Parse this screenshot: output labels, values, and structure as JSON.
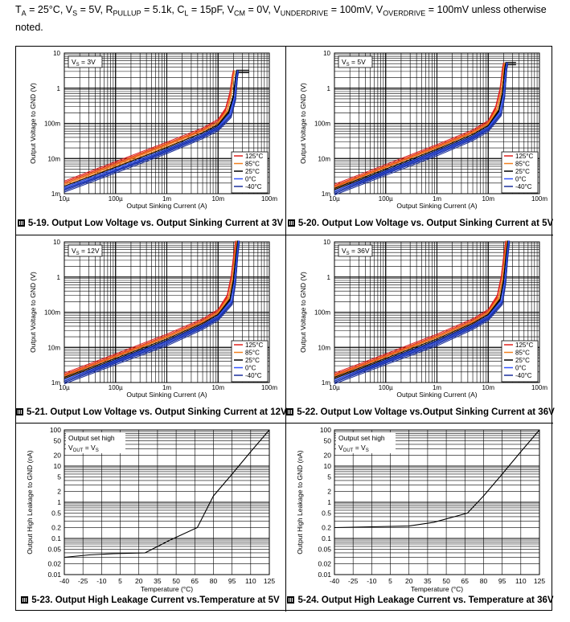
{
  "header": {
    "ta": "T",
    "ta_sub": "A",
    "ta_val": " = 25°C, V",
    "vs_sub": "S",
    "vs_val": " = 5V, R",
    "rp_sub": "PULLUP",
    "rp_val": " = 5.1k, C",
    "cl_sub": "L",
    "cl_val": " = 15pF, V",
    "vcm_sub": "CM",
    "vcm_val": " = 0V, V",
    "vu_sub": "UNDERDRIVE",
    "vu_val": " = 100mV, V",
    "vo_sub": "OVERDRIVE",
    "vo_val": " = 100mV unless otherwise",
    "line2": "noted."
  },
  "colors": {
    "t125": "#e0201c",
    "t85": "#f08020",
    "t25": "#000000",
    "t0": "#3355ff",
    "tm40": "#1a2f9c"
  },
  "legend": [
    "125°C",
    "85°C",
    "25°C",
    "0°C",
    "-40°C"
  ],
  "chart_data": [
    {
      "type": "line",
      "figure": "5-19",
      "title": "Output Low Voltage vs. Output Sinking Current at 3V",
      "caption_prefix": "5-19.",
      "annotation": "VS = 3V",
      "annotation_main": "V",
      "annotation_sub": "S",
      "annotation_tail": " = 3V",
      "xlabel": "Output Sinking Current (A)",
      "ylabel": "Output Voltage to GND (V)",
      "xscale": "log",
      "yscale": "log",
      "xlim": [
        1e-05,
        0.1
      ],
      "ylim": [
        0.001,
        10
      ],
      "xticks": [
        "10µ",
        "100µ",
        "1m",
        "10m",
        "100m"
      ],
      "yticks": [
        "10",
        "1",
        "100m",
        "10m",
        "1m"
      ],
      "legend_position": "bottom-right",
      "series": [
        {
          "name": "125°C",
          "x": [
            1e-05,
            0.0001,
            0.001,
            0.005,
            0.01,
            0.014,
            0.017,
            0.019,
            0.02
          ],
          "y": [
            0.0021,
            0.0075,
            0.027,
            0.068,
            0.12,
            0.25,
            0.7,
            2.2,
            3
          ]
        },
        {
          "name": "85°C",
          "x": [
            1e-05,
            0.0001,
            0.001,
            0.005,
            0.01,
            0.015,
            0.018,
            0.02,
            0.021
          ],
          "y": [
            0.0018,
            0.0065,
            0.024,
            0.06,
            0.1,
            0.22,
            0.65,
            2.2,
            3
          ]
        },
        {
          "name": "25°C",
          "x": [
            1e-05,
            0.0001,
            0.001,
            0.005,
            0.01,
            0.016,
            0.02,
            0.022,
            0.023,
            0.04
          ],
          "y": [
            0.0015,
            0.0052,
            0.019,
            0.05,
            0.085,
            0.2,
            0.6,
            2.2,
            3,
            3
          ]
        },
        {
          "name": "0°C",
          "x": [
            1e-05,
            0.0001,
            0.001,
            0.005,
            0.01,
            0.017,
            0.021,
            0.023,
            0.024
          ],
          "y": [
            0.0014,
            0.0048,
            0.017,
            0.045,
            0.075,
            0.18,
            0.55,
            2.2,
            3
          ]
        },
        {
          "name": "-40°C",
          "x": [
            1e-05,
            0.0001,
            0.001,
            0.005,
            0.01,
            0.018,
            0.022,
            0.024,
            0.025
          ],
          "y": [
            0.0012,
            0.0042,
            0.015,
            0.04,
            0.066,
            0.16,
            0.5,
            2.2,
            3
          ]
        }
      ]
    },
    {
      "type": "line",
      "figure": "5-20",
      "title": "Output Low Voltage vs. Output Sinking Current at 5V",
      "caption_prefix": "5-20.",
      "annotation": "VS = 5V",
      "annotation_main": "V",
      "annotation_sub": "S",
      "annotation_tail": " = 5V",
      "xlabel": "Output Sinking Current (A)",
      "ylabel": "Output Voltage to GND (V)",
      "xscale": "log",
      "yscale": "log",
      "xlim": [
        1e-05,
        0.1
      ],
      "ylim": [
        0.001,
        10
      ],
      "xticks": [
        "10µ",
        "100µ",
        "1m",
        "10m",
        "100m"
      ],
      "yticks": [
        "10",
        "1",
        "100m",
        "10m",
        "1m"
      ],
      "legend_position": "bottom-right",
      "series": [
        {
          "name": "125°C",
          "x": [
            1e-05,
            0.0001,
            0.001,
            0.005,
            0.01,
            0.014,
            0.017,
            0.019,
            0.02
          ],
          "y": [
            0.0017,
            0.0062,
            0.023,
            0.06,
            0.11,
            0.28,
            0.9,
            3.5,
            5
          ]
        },
        {
          "name": "85°C",
          "x": [
            1e-05,
            0.0001,
            0.001,
            0.005,
            0.01,
            0.015,
            0.018,
            0.02,
            0.021
          ],
          "y": [
            0.0015,
            0.0055,
            0.02,
            0.053,
            0.095,
            0.25,
            0.8,
            3.5,
            5
          ]
        },
        {
          "name": "25°C",
          "x": [
            1e-05,
            0.0001,
            0.001,
            0.005,
            0.01,
            0.016,
            0.019,
            0.021,
            0.022,
            0.035
          ],
          "y": [
            0.0013,
            0.0046,
            0.017,
            0.045,
            0.08,
            0.22,
            0.7,
            3.5,
            5,
            5
          ]
        },
        {
          "name": "0°C",
          "x": [
            1e-05,
            0.0001,
            0.001,
            0.005,
            0.01,
            0.017,
            0.02,
            0.022,
            0.023
          ],
          "y": [
            0.0011,
            0.0041,
            0.015,
            0.04,
            0.072,
            0.2,
            0.65,
            3.5,
            5
          ]
        },
        {
          "name": "-40°C",
          "x": [
            1e-05,
            0.0001,
            0.001,
            0.005,
            0.01,
            0.018,
            0.021,
            0.023,
            0.024
          ],
          "y": [
            0.001,
            0.0036,
            0.013,
            0.035,
            0.063,
            0.18,
            0.6,
            3.5,
            5
          ]
        }
      ]
    },
    {
      "type": "line",
      "figure": "5-21",
      "title": "Output Low Voltage vs. Output Sinking Current at 12V",
      "caption_prefix": "5-21.",
      "annotation": "VS = 12V",
      "annotation_main": "V",
      "annotation_sub": "S",
      "annotation_tail": " = 12V",
      "xlabel": "Output Sinking Current (A)",
      "ylabel": "Output Voltage to GND (V)",
      "xscale": "log",
      "yscale": "log",
      "xlim": [
        1e-05,
        0.1
      ],
      "ylim": [
        0.001,
        10
      ],
      "xticks": [
        "10µ",
        "100µ",
        "1m",
        "10m",
        "100m"
      ],
      "yticks": [
        "10",
        "1",
        "100m",
        "10m",
        "1m"
      ],
      "legend_position": "bottom-right",
      "series": [
        {
          "name": "125°C",
          "x": [
            1e-05,
            0.0001,
            0.001,
            0.005,
            0.01,
            0.015,
            0.018,
            0.02,
            0.022
          ],
          "y": [
            0.0017,
            0.006,
            0.022,
            0.06,
            0.11,
            0.28,
            1.0,
            3.5,
            10
          ]
        },
        {
          "name": "85°C",
          "x": [
            1e-05,
            0.0001,
            0.001,
            0.005,
            0.01,
            0.016,
            0.019,
            0.021,
            0.023
          ],
          "y": [
            0.0015,
            0.0053,
            0.019,
            0.052,
            0.095,
            0.25,
            0.9,
            3.5,
            10
          ]
        },
        {
          "name": "25°C",
          "x": [
            1e-05,
            0.0001,
            0.001,
            0.005,
            0.01,
            0.017,
            0.02,
            0.022,
            0.024
          ],
          "y": [
            0.0013,
            0.0045,
            0.016,
            0.045,
            0.08,
            0.22,
            0.8,
            3.5,
            10
          ]
        },
        {
          "name": "0°C",
          "x": [
            1e-05,
            0.0001,
            0.001,
            0.005,
            0.01,
            0.018,
            0.021,
            0.023,
            0.025
          ],
          "y": [
            0.0011,
            0.004,
            0.014,
            0.04,
            0.072,
            0.2,
            0.75,
            3.5,
            10
          ]
        },
        {
          "name": "-40°C",
          "x": [
            1e-05,
            0.0001,
            0.001,
            0.005,
            0.01,
            0.019,
            0.022,
            0.024,
            0.026
          ],
          "y": [
            0.001,
            0.0035,
            0.012,
            0.035,
            0.063,
            0.18,
            0.7,
            3.5,
            10
          ]
        }
      ]
    },
    {
      "type": "line",
      "figure": "5-22",
      "title": "Output Low Voltage vs.Output Sinking Current at 36V",
      "caption_prefix": "5-22.",
      "annotation": "VS = 36V",
      "annotation_main": "V",
      "annotation_sub": "S",
      "annotation_tail": " = 36V",
      "xlabel": "Output Sinking Current (A)",
      "ylabel": "Output Voltage to GND (V)",
      "xscale": "log",
      "yscale": "log",
      "xlim": [
        1e-05,
        0.1
      ],
      "ylim": [
        0.001,
        10
      ],
      "xticks": [
        "10µ",
        "100µ",
        "1m",
        "10m",
        "100m"
      ],
      "yticks": [
        "10",
        "1",
        "100m",
        "10m",
        "1m"
      ],
      "legend_position": "bottom-right",
      "series": [
        {
          "name": "125°C",
          "x": [
            1e-05,
            0.0001,
            0.001,
            0.005,
            0.01,
            0.015,
            0.018,
            0.02,
            0.022
          ],
          "y": [
            0.0017,
            0.006,
            0.022,
            0.06,
            0.11,
            0.28,
            1.0,
            3.5,
            10
          ]
        },
        {
          "name": "85°C",
          "x": [
            1e-05,
            0.0001,
            0.001,
            0.005,
            0.01,
            0.016,
            0.019,
            0.021,
            0.023
          ],
          "y": [
            0.0015,
            0.0053,
            0.019,
            0.052,
            0.095,
            0.25,
            0.9,
            3.5,
            10
          ]
        },
        {
          "name": "25°C",
          "x": [
            1e-05,
            0.0001,
            0.001,
            0.005,
            0.01,
            0.017,
            0.02,
            0.022,
            0.024
          ],
          "y": [
            0.0013,
            0.0045,
            0.016,
            0.045,
            0.08,
            0.22,
            0.8,
            3.5,
            10
          ]
        },
        {
          "name": "0°C",
          "x": [
            1e-05,
            0.0001,
            0.001,
            0.005,
            0.01,
            0.018,
            0.021,
            0.023,
            0.025
          ],
          "y": [
            0.0011,
            0.004,
            0.014,
            0.04,
            0.072,
            0.2,
            0.75,
            3.5,
            10
          ]
        },
        {
          "name": "-40°C",
          "x": [
            1e-05,
            0.0001,
            0.001,
            0.005,
            0.01,
            0.019,
            0.022,
            0.024,
            0.026
          ],
          "y": [
            0.001,
            0.0035,
            0.012,
            0.035,
            0.063,
            0.18,
            0.7,
            3.5,
            10
          ]
        }
      ]
    },
    {
      "type": "line",
      "figure": "5-23",
      "title": "Output High Leakage Current vs.Temperature at 5V",
      "caption_prefix": "5-23.",
      "annotation_line1": "Output set high",
      "annotation_main": "V",
      "annotation_sub": "OUT",
      "annotation_tail": " = V",
      "annotation_sub2": "S",
      "xlabel": "Temperature (°C)",
      "ylabel": "Output High Leakage to GND (nA)",
      "xscale": "linear",
      "yscale": "log",
      "xlim": [
        -40,
        125
      ],
      "ylim": [
        0.01,
        100
      ],
      "xticks": [
        "-40",
        "-25",
        "-10",
        "5",
        "20",
        "35",
        "50",
        "65",
        "80",
        "95",
        "110",
        "125"
      ],
      "yticks": [
        "100",
        "50",
        "20",
        "10",
        "5",
        "2",
        "1",
        "0.5",
        "0.2",
        "0.1",
        "0.05",
        "0.02",
        "0.01"
      ],
      "series": [
        {
          "name": "5V",
          "x": [
            -40,
            -20,
            0,
            25,
            45,
            67,
            80,
            95,
            110,
            125
          ],
          "y": [
            0.03,
            0.035,
            0.038,
            0.04,
            0.09,
            0.2,
            1.5,
            6,
            25,
            100
          ]
        }
      ]
    },
    {
      "type": "line",
      "figure": "5-24",
      "title": "Output High Leakage Current vs. Temperature at 36V",
      "caption_prefix": "5-24.",
      "annotation_line1": "Output set high",
      "annotation_main": "V",
      "annotation_sub": "OUT",
      "annotation_tail": " = V",
      "annotation_sub2": "S",
      "xlabel": "Temperature (°C)",
      "ylabel": "Output High Leakage to GND (nA)",
      "xscale": "linear",
      "yscale": "log",
      "xlim": [
        -40,
        125
      ],
      "ylim": [
        0.01,
        100
      ],
      "xticks": [
        "-40",
        "-25",
        "-10",
        "5",
        "20",
        "35",
        "50",
        "65",
        "80",
        "95",
        "110",
        "125"
      ],
      "yticks": [
        "100",
        "50",
        "20",
        "10",
        "5",
        "2",
        "1",
        "0.5",
        "0.2",
        "0.1",
        "0.05",
        "0.02",
        "0.01"
      ],
      "series": [
        {
          "name": "36V",
          "x": [
            -40,
            -10,
            20,
            40,
            67,
            80,
            95,
            110,
            125
          ],
          "y": [
            0.2,
            0.21,
            0.22,
            0.28,
            0.5,
            1.5,
            6,
            25,
            100
          ]
        }
      ]
    }
  ]
}
